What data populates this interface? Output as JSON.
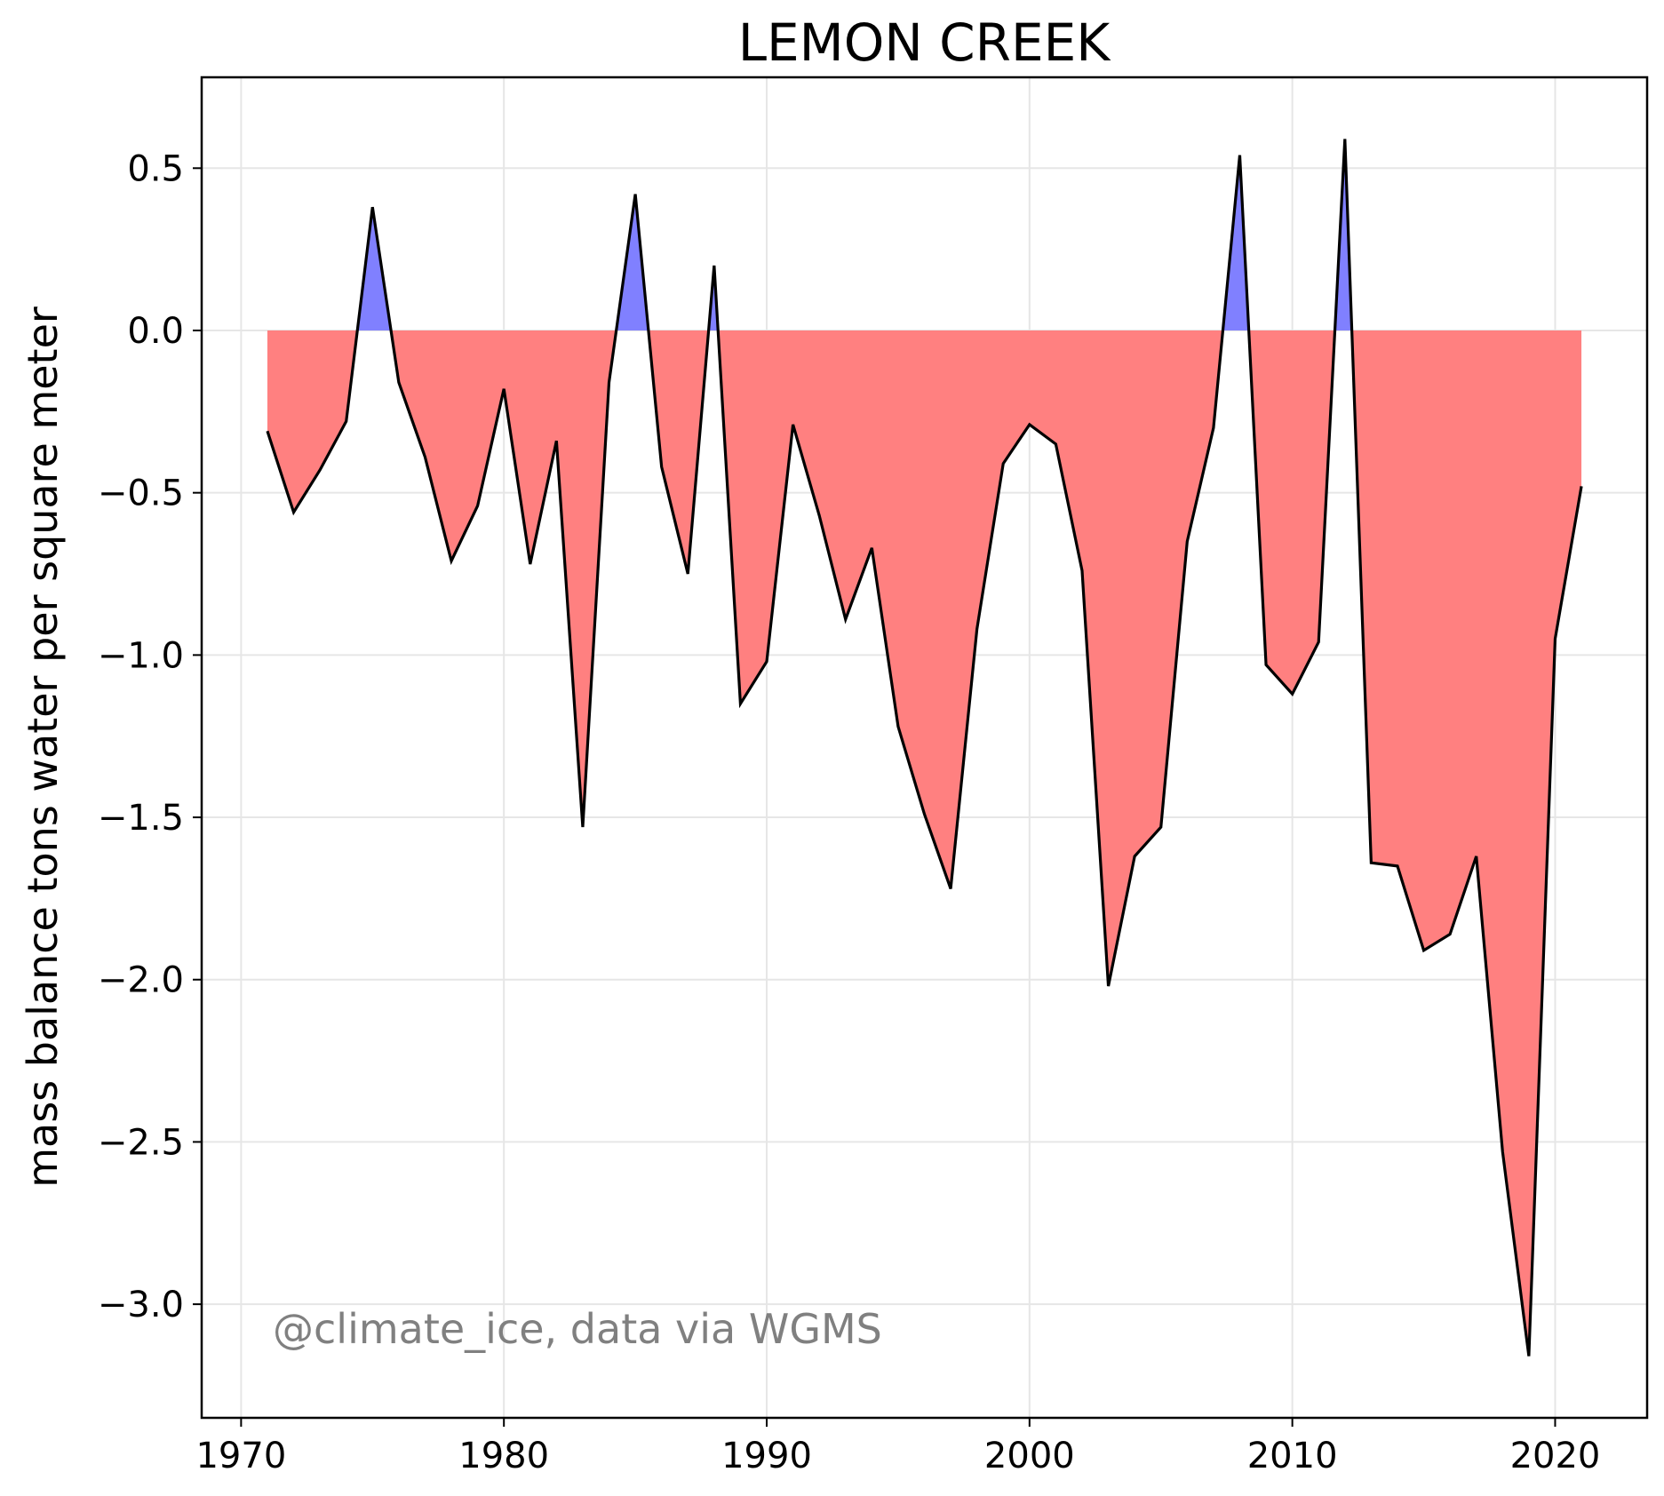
{
  "chart_data": {
    "type": "area",
    "title": "LEMON CREEK",
    "xlabel": "",
    "ylabel": "mass balance tons water per square meter",
    "annotation": "@climate_ice, data via WGMS",
    "xlim": [
      1968.5,
      2023.5
    ],
    "ylim": [
      -3.35,
      0.78
    ],
    "xticks": [
      1970,
      1980,
      1990,
      2000,
      2010,
      2020
    ],
    "yticks": [
      0.5,
      0.0,
      -0.5,
      -1.0,
      -1.5,
      -2.0,
      -2.5,
      -3.0
    ],
    "ytick_labels": [
      "0.5",
      "0.0",
      "−0.5",
      "−1.0",
      "−1.5",
      "−2.0",
      "−2.5",
      "−3.0"
    ],
    "grid": true,
    "fill_positive_color": "#8080ff",
    "fill_negative_color": "#ff8080",
    "line_color": "#000000",
    "x": [
      1971,
      1972,
      1973,
      1974,
      1975,
      1976,
      1977,
      1978,
      1979,
      1980,
      1981,
      1982,
      1983,
      1984,
      1985,
      1986,
      1987,
      1988,
      1989,
      1990,
      1991,
      1992,
      1993,
      1994,
      1995,
      1996,
      1997,
      1998,
      1999,
      2000,
      2001,
      2002,
      2003,
      2004,
      2005,
      2006,
      2007,
      2008,
      2009,
      2010,
      2011,
      2012,
      2013,
      2014,
      2015,
      2016,
      2017,
      2018,
      2019,
      2020,
      2021
    ],
    "values": [
      -0.31,
      -0.56,
      -0.43,
      -0.28,
      0.38,
      -0.16,
      -0.39,
      -0.71,
      -0.54,
      -0.18,
      -0.72,
      -0.34,
      -1.53,
      -0.16,
      0.42,
      -0.42,
      -0.75,
      0.2,
      -1.15,
      -1.02,
      -0.29,
      -0.57,
      -0.89,
      -0.67,
      -1.22,
      -1.49,
      -1.72,
      -0.92,
      -0.41,
      -0.29,
      -0.35,
      -0.74,
      -2.02,
      -1.62,
      -1.53,
      -0.65,
      -0.3,
      0.54,
      -1.03,
      -1.12,
      -0.96,
      0.59,
      -1.64,
      -1.65,
      -1.91,
      -1.86,
      -1.62,
      -2.53,
      -3.16,
      -0.95,
      -0.48
    ]
  }
}
